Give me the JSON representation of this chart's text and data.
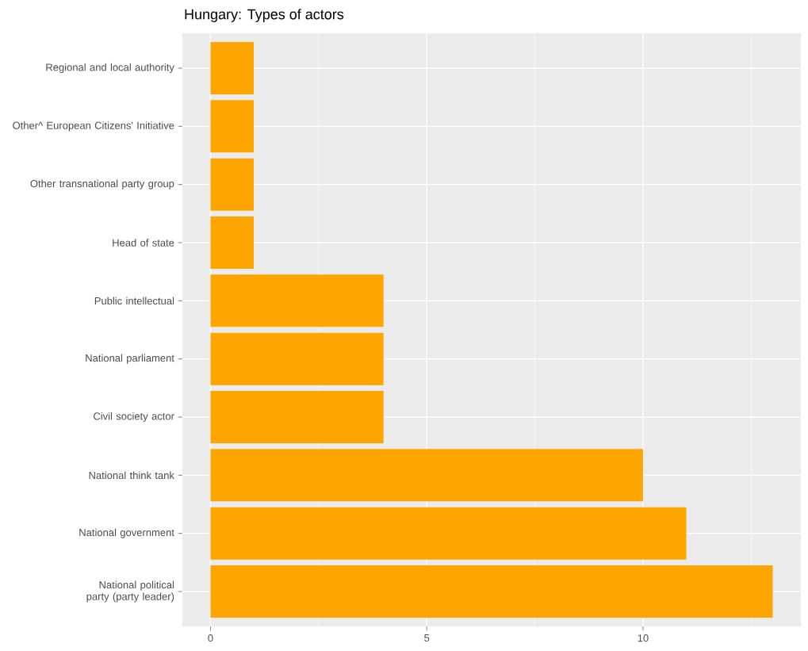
{
  "chart_data": {
    "type": "bar",
    "orientation": "horizontal",
    "title": "Hungary: Types of actors",
    "categories": [
      "Regional and local authority",
      "Other^ European Citizens' Initiative",
      "Other transnational party group",
      "Head of state",
      "Public intellectual",
      "National parliament",
      "Civil society actor",
      "National think tank",
      "National government",
      "National political party (party leader)"
    ],
    "values": [
      1,
      1,
      1,
      1,
      4,
      4,
      4,
      10,
      11,
      13
    ],
    "color": "#ffa500",
    "xlim": [
      -0.65,
      13.65
    ],
    "xticks": [
      0,
      5,
      10
    ],
    "grid": true
  }
}
